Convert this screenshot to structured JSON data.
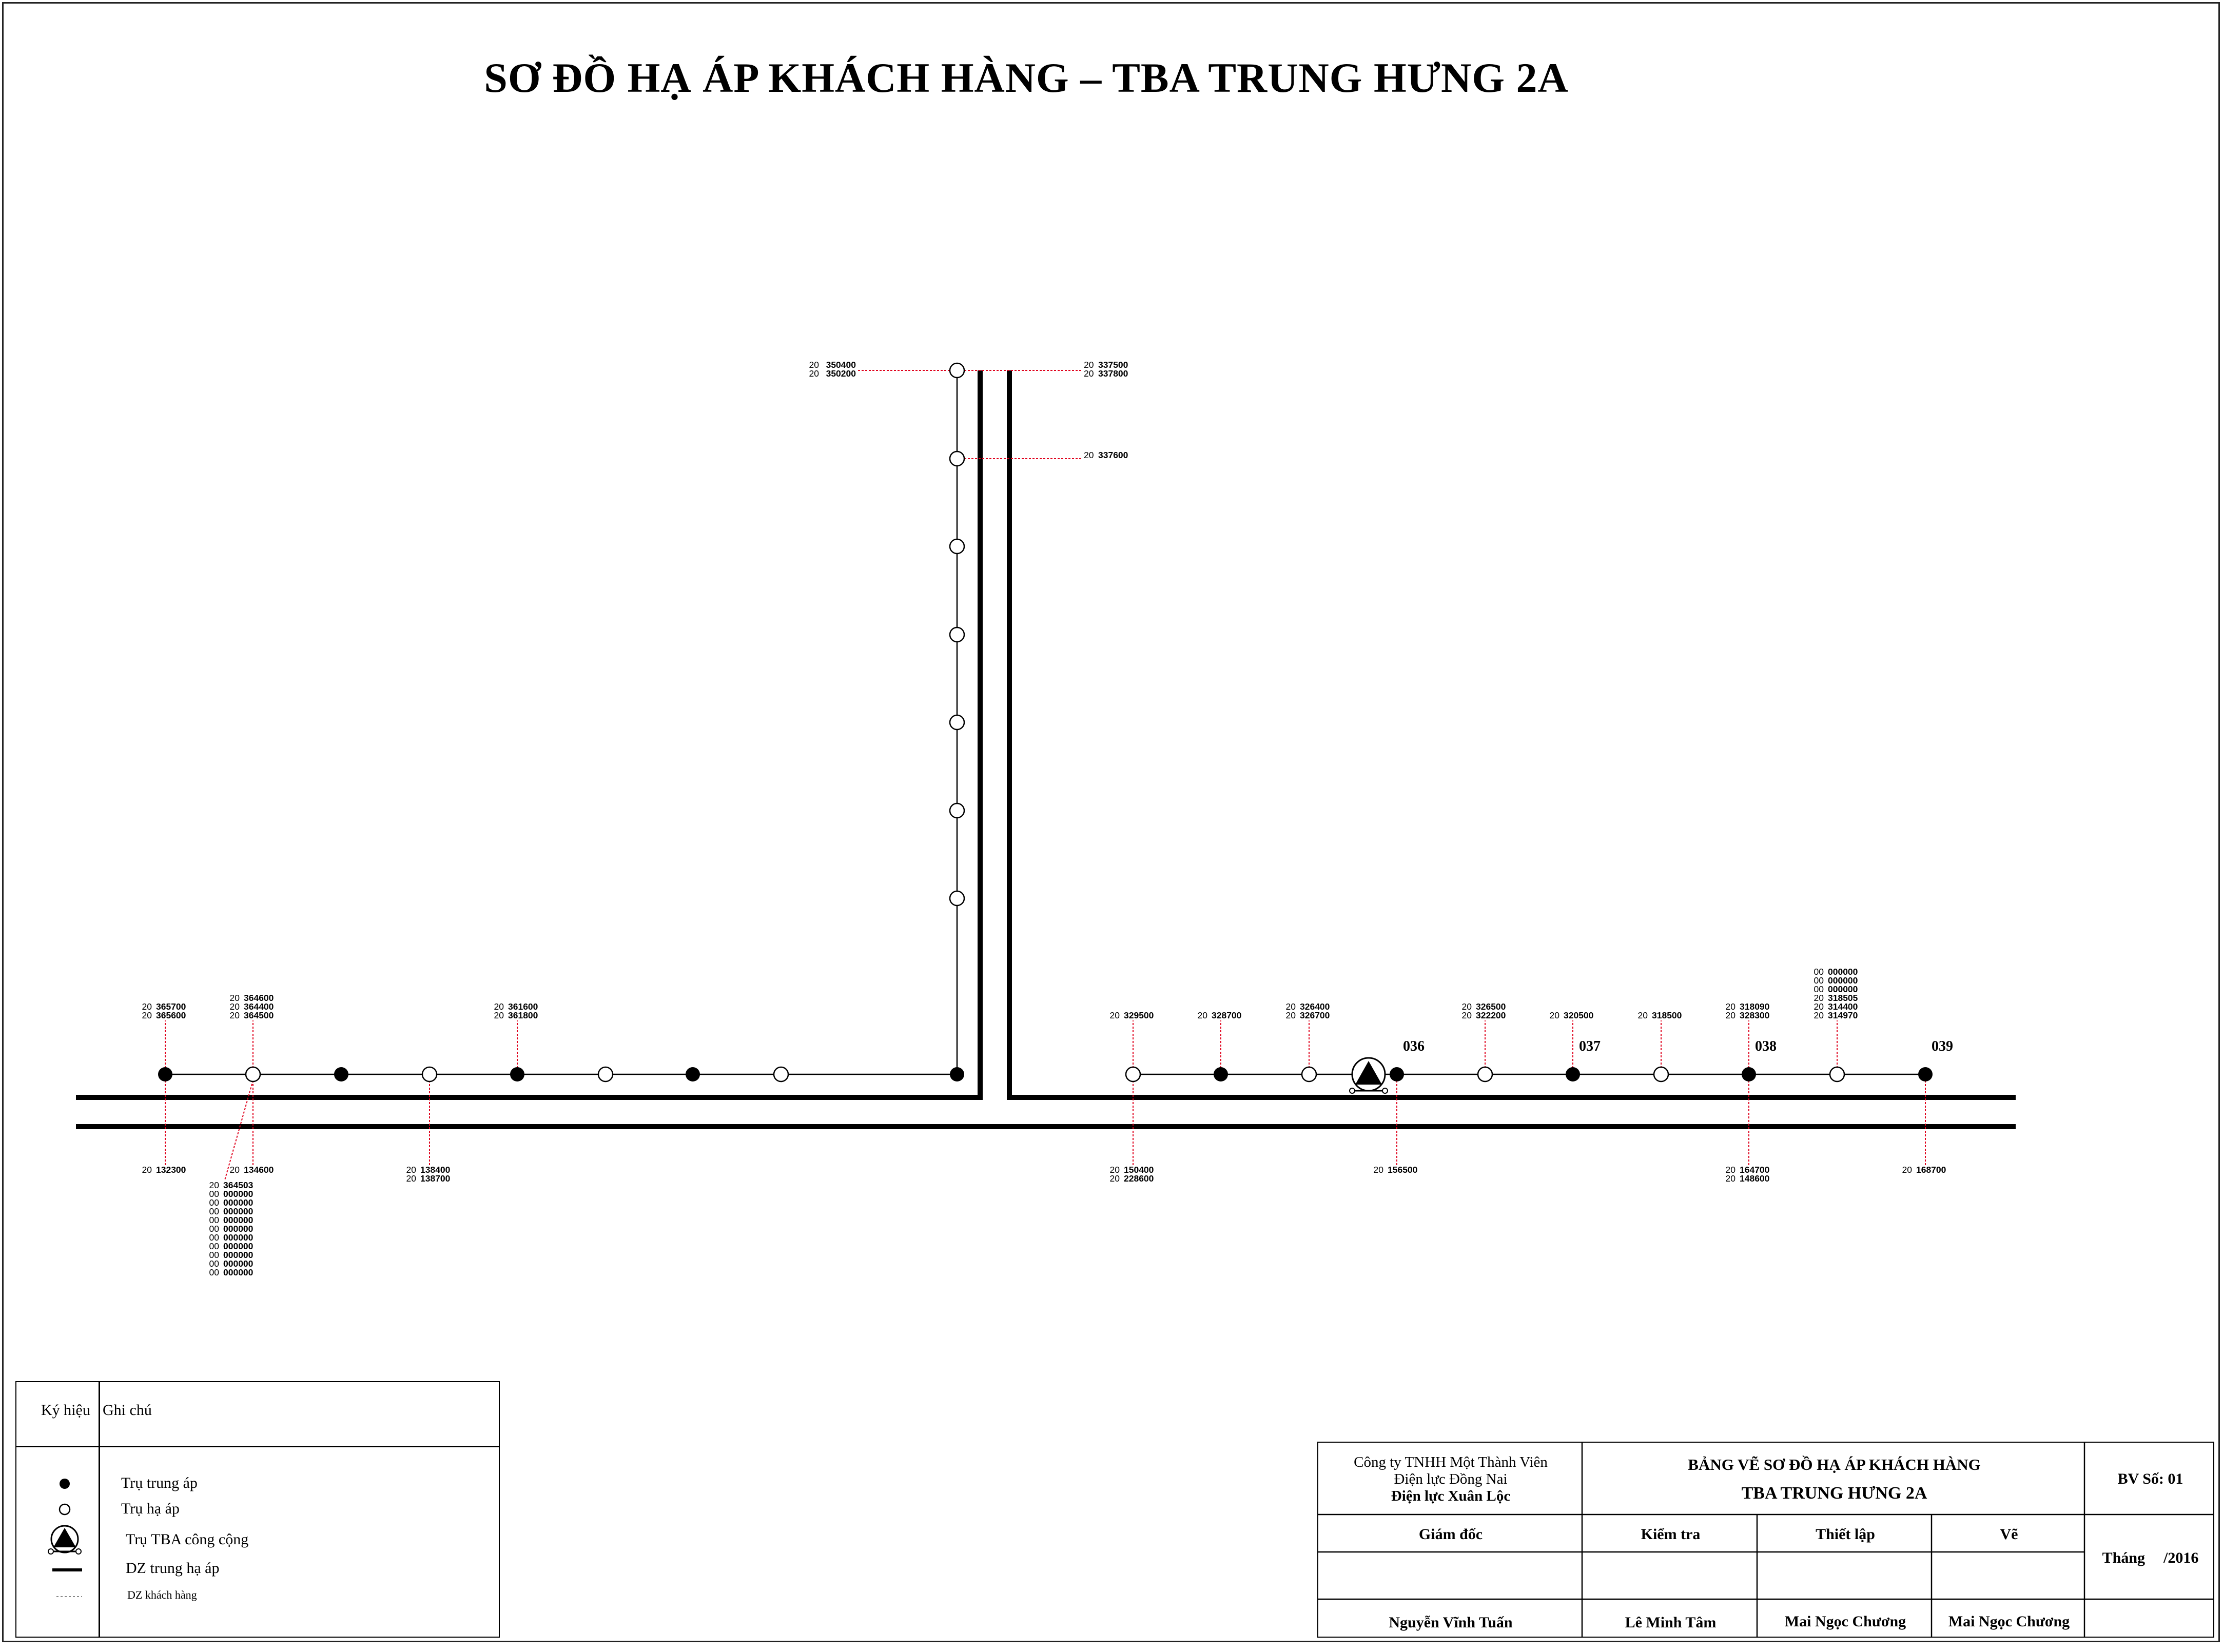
{
  "title": "SƠ ĐỒ HẠ ÁP KHÁCH HÀNG – TBA TRUNG HƯNG 2A",
  "colors": {
    "line": "#000000",
    "customer_line": "#e0001b",
    "background": "#ffffff"
  },
  "poles": [
    {
      "id": "p1",
      "type": "trung-ap"
    },
    {
      "id": "p2",
      "type": "ha-ap"
    },
    {
      "id": "p3",
      "type": "trung-ap"
    },
    {
      "id": "p4",
      "type": "ha-ap"
    },
    {
      "id": "p5",
      "type": "trung-ap"
    },
    {
      "id": "p6",
      "type": "ha-ap"
    },
    {
      "id": "p7",
      "type": "trung-ap"
    },
    {
      "id": "p8",
      "type": "ha-ap"
    },
    {
      "id": "p9",
      "type": "trung-ap"
    },
    {
      "id": "v1",
      "type": "ha-ap"
    },
    {
      "id": "v2",
      "type": "ha-ap"
    },
    {
      "id": "v3",
      "type": "ha-ap"
    },
    {
      "id": "v4",
      "type": "ha-ap"
    },
    {
      "id": "v5",
      "type": "ha-ap"
    },
    {
      "id": "v6",
      "type": "ha-ap"
    },
    {
      "id": "v7",
      "type": "ha-ap"
    },
    {
      "id": "r1",
      "type": "ha-ap"
    },
    {
      "id": "r2",
      "type": "trung-ap"
    },
    {
      "id": "r3",
      "type": "ha-ap"
    },
    {
      "id": "tba",
      "type": "tba"
    },
    {
      "id": "r4",
      "type": "trung-ap",
      "tag": "036"
    },
    {
      "id": "r5",
      "type": "ha-ap"
    },
    {
      "id": "r6",
      "type": "trung-ap",
      "tag": "037"
    },
    {
      "id": "r7",
      "type": "ha-ap"
    },
    {
      "id": "r8",
      "type": "trung-ap",
      "tag": "038"
    },
    {
      "id": "r9",
      "type": "ha-ap"
    },
    {
      "id": "r10",
      "type": "trung-ap",
      "tag": "039"
    }
  ],
  "customers": [
    {
      "pole": "p1",
      "side": "above",
      "codes": [
        [
          "20",
          "365700"
        ],
        [
          "20",
          "365600"
        ]
      ]
    },
    {
      "pole": "p1",
      "side": "below",
      "codes": [
        [
          "20",
          "132300"
        ]
      ]
    },
    {
      "pole": "p2",
      "side": "above",
      "codes": [
        [
          "20",
          "364600"
        ],
        [
          "20",
          "364400"
        ],
        [
          "20",
          "364500"
        ]
      ]
    },
    {
      "pole": "p2",
      "side": "below",
      "codes": [
        [
          "20",
          "134600"
        ]
      ]
    },
    {
      "pole": "p2",
      "side": "below-left",
      "codes": [
        [
          "20",
          "364503"
        ],
        [
          "00",
          "000000"
        ],
        [
          "00",
          "000000"
        ],
        [
          "00",
          "000000"
        ],
        [
          "00",
          "000000"
        ],
        [
          "00",
          "000000"
        ],
        [
          "00",
          "000000"
        ],
        [
          "00",
          "000000"
        ],
        [
          "00",
          "000000"
        ],
        [
          "00",
          "000000"
        ],
        [
          "00",
          "000000"
        ]
      ]
    },
    {
      "pole": "p4",
      "side": "below",
      "codes": [
        [
          "20",
          "138400"
        ],
        [
          "20",
          "138700"
        ]
      ]
    },
    {
      "pole": "p5",
      "side": "above",
      "codes": [
        [
          "20",
          "361600"
        ],
        [
          "20",
          "361800"
        ]
      ]
    },
    {
      "pole": "v1",
      "side": "left",
      "codes": [
        [
          "20",
          "350400"
        ],
        [
          "20",
          "350200"
        ]
      ]
    },
    {
      "pole": "v1",
      "side": "right",
      "codes": [
        [
          "20",
          "337500"
        ],
        [
          "20",
          "337800"
        ]
      ]
    },
    {
      "pole": "v2",
      "side": "right",
      "codes": [
        [
          "20",
          "337600"
        ]
      ]
    },
    {
      "pole": "r1",
      "side": "above",
      "codes": [
        [
          "20",
          "329500"
        ]
      ]
    },
    {
      "pole": "r1",
      "side": "below",
      "codes": [
        [
          "20",
          "150400"
        ],
        [
          "20",
          "228600"
        ]
      ]
    },
    {
      "pole": "r2",
      "side": "above",
      "codes": [
        [
          "20",
          "328700"
        ]
      ]
    },
    {
      "pole": "r3",
      "side": "above",
      "codes": [
        [
          "20",
          "326400"
        ],
        [
          "20",
          "326700"
        ]
      ]
    },
    {
      "pole": "r4",
      "side": "below",
      "codes": [
        [
          "20",
          "156500"
        ]
      ]
    },
    {
      "pole": "r5",
      "side": "above",
      "codes": [
        [
          "20",
          "326500"
        ],
        [
          "20",
          "322200"
        ]
      ]
    },
    {
      "pole": "r6",
      "side": "above",
      "codes": [
        [
          "20",
          "320500"
        ]
      ]
    },
    {
      "pole": "r7",
      "side": "above",
      "codes": [
        [
          "20",
          "318500"
        ]
      ]
    },
    {
      "pole": "r8",
      "side": "above",
      "codes": [
        [
          "20",
          "318090"
        ],
        [
          "20",
          "328300"
        ]
      ]
    },
    {
      "pole": "r8",
      "side": "below",
      "codes": [
        [
          "20",
          "164700"
        ],
        [
          "20",
          "148600"
        ]
      ]
    },
    {
      "pole": "r9",
      "side": "above",
      "codes": [
        [
          "00",
          "000000"
        ],
        [
          "00",
          "000000"
        ],
        [
          "00",
          "000000"
        ],
        [
          "20",
          "318505"
        ],
        [
          "20",
          "314400"
        ],
        [
          "20",
          "314970"
        ]
      ]
    },
    {
      "pole": "r10",
      "side": "below",
      "codes": [
        [
          "20",
          "168700"
        ]
      ]
    }
  ],
  "legend": {
    "header_symbol": "Ký hiệu",
    "header_note": "Ghi chú",
    "items": [
      {
        "icon": "filled-circle-icon",
        "label": "Trụ trung áp"
      },
      {
        "icon": "hollow-circle-icon",
        "label": "Trụ hạ áp"
      },
      {
        "icon": "tba-triangle-icon",
        "label": "Trụ TBA công cộng"
      },
      {
        "icon": "thick-line-icon",
        "label": "DZ trung hạ áp"
      },
      {
        "icon": "dashed-line-icon",
        "label": "DZ khách hàng"
      }
    ]
  },
  "title_block": {
    "company_line1": "Công ty TNHH Một Thành Viên",
    "company_line2": "Điện lực Đồng Nai",
    "company_line3": "Điện lực Xuân Lộc",
    "drawing_title_line1": "BẢNG VẼ SƠ ĐỒ HẠ ÁP KHÁCH HÀNG",
    "drawing_title_line2": "TBA TRUNG HƯNG 2A",
    "drawing_no": "BV Số: 01",
    "role_director": "Giám đốc",
    "role_check": "Kiểm tra",
    "role_setup": "Thiết lập",
    "role_draw": "Vẽ",
    "month_label": "Tháng",
    "year": "/2016",
    "name_director": "Nguyễn Vĩnh Tuấn",
    "name_check": "Lê Minh Tâm",
    "name_setup": "Mai Ngọc Chương",
    "name_draw": "Mai Ngọc Chương"
  }
}
